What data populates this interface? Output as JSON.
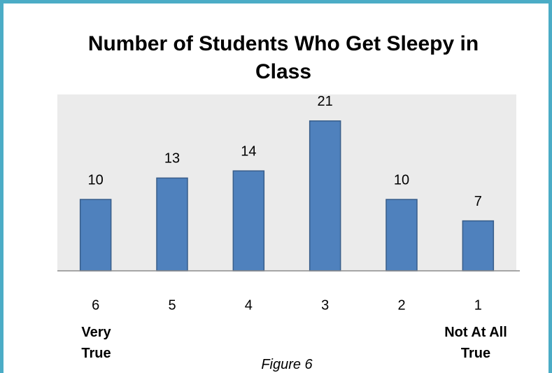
{
  "chart_data": {
    "type": "bar",
    "title": "Number of Students Who Get Sleepy in Class",
    "categories": [
      "6",
      "5",
      "4",
      "3",
      "2",
      "1"
    ],
    "values": [
      10,
      13,
      14,
      21,
      10,
      7
    ],
    "color": "#4f81bd",
    "ylim": [
      0,
      25
    ],
    "grid": false,
    "annotations": [
      "Very True",
      "Not At All True"
    ],
    "caption": "Figure 6"
  }
}
